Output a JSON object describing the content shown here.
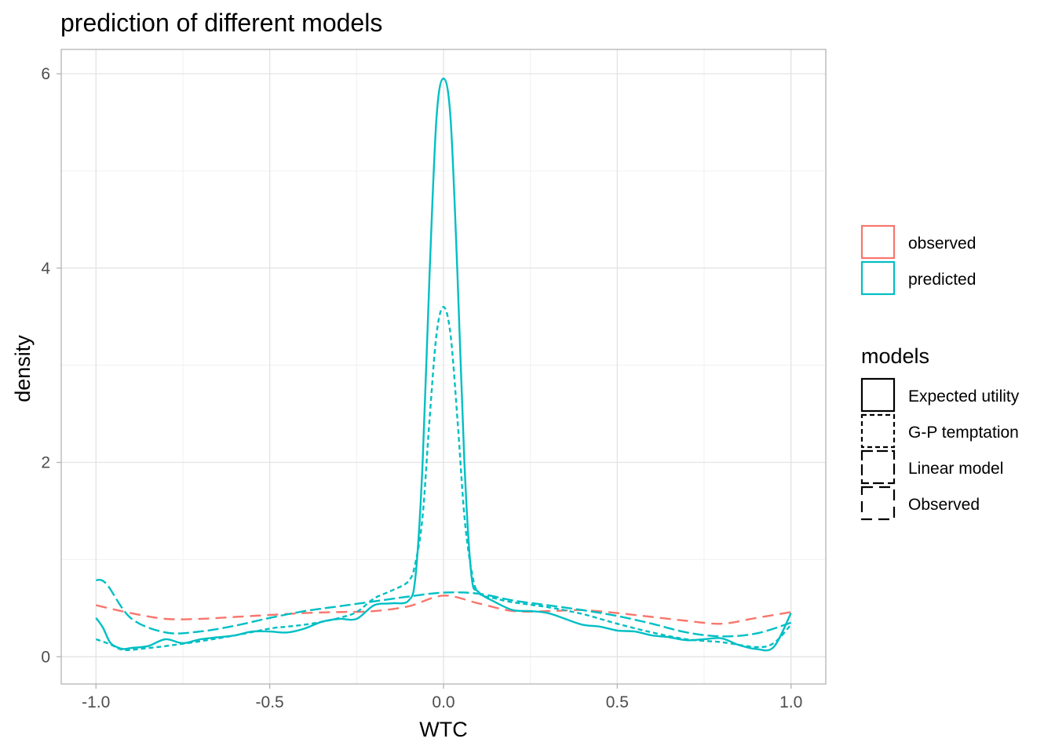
{
  "chart_data": {
    "type": "line",
    "title": "prediction of different models",
    "xlabel": "WTC",
    "ylabel": "density",
    "xlim": [
      -1.1,
      1.1
    ],
    "ylim": [
      -0.28,
      6.25
    ],
    "x_ticks": [
      -1.0,
      -0.5,
      0.0,
      0.5,
      1.0
    ],
    "x_tick_labels": [
      "-1.0",
      "-0.5",
      "0.0",
      "0.5",
      "1.0"
    ],
    "y_ticks": [
      0,
      2,
      4,
      6
    ],
    "y_tick_labels": [
      "0",
      "2",
      "4",
      "6"
    ],
    "grid": true,
    "legend_position": "right",
    "legend_color": {
      "entries": [
        {
          "label": "observed",
          "color": "#F8766D"
        },
        {
          "label": "predicted",
          "color": "#00BFC4"
        }
      ]
    },
    "legend_linetype": {
      "title": "models",
      "entries": [
        {
          "label": "Expected utility",
          "dash": "solid"
        },
        {
          "label": "G-P temptation",
          "dash": "dotted"
        },
        {
          "label": "Linear model",
          "dash": "dashdot"
        },
        {
          "label": "Observed",
          "dash": "dashed"
        }
      ]
    },
    "series": [
      {
        "name": "Observed",
        "color": "#F8766D",
        "dash": "dashed",
        "x": [
          -1.0,
          -0.9,
          -0.8,
          -0.7,
          -0.6,
          -0.5,
          -0.4,
          -0.3,
          -0.2,
          -0.1,
          0.0,
          0.1,
          0.2,
          0.3,
          0.4,
          0.5,
          0.6,
          0.7,
          0.8,
          0.9,
          1.0
        ],
        "y": [
          0.53,
          0.45,
          0.39,
          0.39,
          0.41,
          0.43,
          0.45,
          0.46,
          0.47,
          0.52,
          0.63,
          0.55,
          0.47,
          0.47,
          0.48,
          0.45,
          0.41,
          0.37,
          0.34,
          0.4,
          0.46
        ]
      },
      {
        "name": "Linear model",
        "color": "#00BFC4",
        "dash": "dashdot",
        "x": [
          -1.0,
          -0.97,
          -0.9,
          -0.8,
          -0.7,
          -0.6,
          -0.5,
          -0.4,
          -0.3,
          -0.2,
          -0.1,
          0.0,
          0.1,
          0.2,
          0.3,
          0.4,
          0.5,
          0.6,
          0.7,
          0.8,
          0.9,
          1.0
        ],
        "y": [
          0.79,
          0.75,
          0.4,
          0.25,
          0.26,
          0.32,
          0.4,
          0.47,
          0.52,
          0.57,
          0.62,
          0.66,
          0.65,
          0.58,
          0.53,
          0.48,
          0.42,
          0.34,
          0.25,
          0.21,
          0.24,
          0.35
        ]
      },
      {
        "name": "G-P temptation",
        "color": "#00BFC4",
        "dash": "dotted",
        "x": [
          -1.0,
          -0.96,
          -0.92,
          -0.85,
          -0.8,
          -0.7,
          -0.6,
          -0.5,
          -0.45,
          -0.4,
          -0.35,
          -0.3,
          -0.25,
          -0.2,
          -0.15,
          -0.1,
          -0.08,
          -0.06,
          -0.04,
          -0.02,
          0.0,
          0.02,
          0.04,
          0.06,
          0.08,
          0.1,
          0.15,
          0.2,
          0.3,
          0.4,
          0.5,
          0.6,
          0.7,
          0.8,
          0.9,
          0.95,
          1.0
        ],
        "y": [
          0.18,
          0.13,
          0.07,
          0.09,
          0.11,
          0.16,
          0.22,
          0.29,
          0.31,
          0.33,
          0.36,
          0.4,
          0.46,
          0.6,
          0.68,
          0.78,
          0.98,
          1.45,
          2.45,
          3.32,
          3.6,
          3.32,
          2.45,
          1.45,
          0.9,
          0.66,
          0.6,
          0.56,
          0.51,
          0.44,
          0.34,
          0.25,
          0.18,
          0.15,
          0.1,
          0.14,
          0.33
        ]
      },
      {
        "name": "Expected utility",
        "color": "#00BFC4",
        "dash": "solid",
        "x": [
          -1.0,
          -0.98,
          -0.96,
          -0.94,
          -0.92,
          -0.9,
          -0.85,
          -0.8,
          -0.75,
          -0.7,
          -0.65,
          -0.6,
          -0.55,
          -0.5,
          -0.45,
          -0.4,
          -0.35,
          -0.3,
          -0.25,
          -0.2,
          -0.15,
          -0.1,
          -0.08,
          -0.06,
          -0.04,
          -0.02,
          0.0,
          0.02,
          0.04,
          0.06,
          0.08,
          0.1,
          0.15,
          0.2,
          0.25,
          0.3,
          0.35,
          0.4,
          0.45,
          0.5,
          0.55,
          0.6,
          0.65,
          0.7,
          0.75,
          0.8,
          0.85,
          0.9,
          0.95,
          1.0
        ],
        "y": [
          0.4,
          0.3,
          0.15,
          0.1,
          0.08,
          0.09,
          0.11,
          0.18,
          0.14,
          0.18,
          0.2,
          0.22,
          0.26,
          0.26,
          0.25,
          0.29,
          0.36,
          0.39,
          0.39,
          0.53,
          0.55,
          0.58,
          0.85,
          2.0,
          3.95,
          5.55,
          5.95,
          5.55,
          3.95,
          2.0,
          0.85,
          0.67,
          0.56,
          0.48,
          0.47,
          0.45,
          0.39,
          0.33,
          0.31,
          0.27,
          0.26,
          0.22,
          0.2,
          0.17,
          0.18,
          0.19,
          0.12,
          0.08,
          0.1,
          0.45
        ]
      }
    ]
  }
}
